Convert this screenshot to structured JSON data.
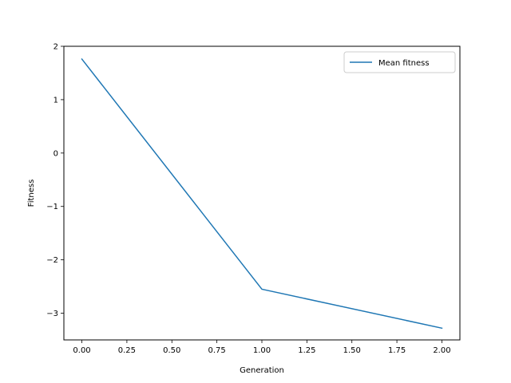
{
  "chart_data": {
    "type": "line",
    "title": "",
    "xlabel": "Generation",
    "ylabel": "Fitness",
    "xlim": [
      -0.1,
      2.1
    ],
    "ylim": [
      -3.5,
      2.0
    ],
    "xticks": [
      0.0,
      0.25,
      0.5,
      0.75,
      1.0,
      1.25,
      1.5,
      1.75,
      2.0
    ],
    "xtick_labels": [
      "0.00",
      "0.25",
      "0.50",
      "0.75",
      "1.00",
      "1.25",
      "1.50",
      "1.75",
      "2.00"
    ],
    "yticks": [
      -3,
      -2,
      -1,
      0,
      1,
      2
    ],
    "ytick_labels": [
      "−3",
      "−2",
      "−1",
      "0",
      "1",
      "2"
    ],
    "grid": false,
    "legend_position": "top-right",
    "series": [
      {
        "name": "Mean fitness",
        "color": "#1f77b4",
        "x": [
          0,
          1,
          2
        ],
        "y": [
          1.76,
          -2.55,
          -3.28
        ]
      }
    ]
  }
}
